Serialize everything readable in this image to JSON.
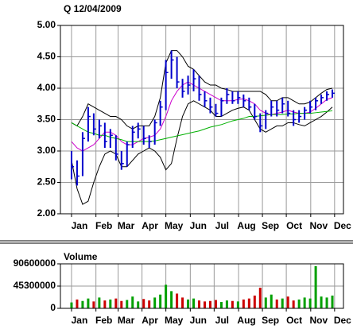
{
  "chart_data": [
    {
      "type": "hlc",
      "title": "Q 12/04/2009",
      "color": "#0000cc",
      "x": [
        0,
        1,
        2,
        3,
        4,
        5,
        6,
        7,
        8,
        9,
        10,
        11,
        12,
        13,
        14,
        15,
        16,
        17,
        18,
        19,
        20,
        21,
        22,
        23,
        24,
        25,
        26,
        27,
        28,
        29,
        30,
        31,
        32,
        33,
        34,
        35,
        36,
        37,
        38,
        39,
        40,
        41,
        42,
        43,
        44,
        45,
        46,
        47
      ],
      "high": [
        3.0,
        2.85,
        3.3,
        3.7,
        3.6,
        3.5,
        3.45,
        3.35,
        3.25,
        3.0,
        3.15,
        3.4,
        3.45,
        3.4,
        3.25,
        3.5,
        3.8,
        4.45,
        4.6,
        4.5,
        4.15,
        4.2,
        4.3,
        4.2,
        3.95,
        3.85,
        3.75,
        3.85,
        4.0,
        3.95,
        3.95,
        3.9,
        3.85,
        3.75,
        3.6,
        3.65,
        3.8,
        3.8,
        3.85,
        3.8,
        3.65,
        3.65,
        3.7,
        3.8,
        3.85,
        3.9,
        3.95,
        3.98
      ],
      "low": [
        2.55,
        2.45,
        2.6,
        3.15,
        3.25,
        3.2,
        3.05,
        3.05,
        2.85,
        2.7,
        2.75,
        3.05,
        3.2,
        3.1,
        3.05,
        3.1,
        3.4,
        3.65,
        4.15,
        4.0,
        3.85,
        3.9,
        3.95,
        3.8,
        3.7,
        3.6,
        3.55,
        3.55,
        3.75,
        3.75,
        3.75,
        3.7,
        3.65,
        3.5,
        3.3,
        3.35,
        3.55,
        3.55,
        3.6,
        3.55,
        3.4,
        3.45,
        3.5,
        3.6,
        3.65,
        3.75,
        3.8,
        3.85
      ],
      "close": [
        2.75,
        2.6,
        3.2,
        3.55,
        3.35,
        3.4,
        3.15,
        3.25,
        2.95,
        2.8,
        3.1,
        3.3,
        3.35,
        3.2,
        3.15,
        3.45,
        3.7,
        4.25,
        4.45,
        4.1,
        3.95,
        4.05,
        4.15,
        3.9,
        3.8,
        3.7,
        3.6,
        3.8,
        3.9,
        3.8,
        3.85,
        3.8,
        3.7,
        3.55,
        3.4,
        3.6,
        3.7,
        3.65,
        3.75,
        3.6,
        3.5,
        3.55,
        3.65,
        3.7,
        3.8,
        3.85,
        3.9,
        3.92
      ],
      "lines": [
        {
          "color": "#000000",
          "values": [
            3.45,
            3.4,
            3.55,
            3.75,
            3.7,
            3.65,
            3.6,
            3.55,
            3.55,
            3.5,
            3.4,
            3.35,
            3.4,
            3.4,
            3.4,
            3.55,
            3.85,
            4.4,
            4.6,
            4.6,
            4.5,
            4.35,
            4.3,
            4.2,
            4.1,
            4.05,
            4.05,
            4.0,
            3.98,
            3.95,
            3.95,
            3.95,
            3.95,
            3.95,
            3.95,
            3.9,
            3.8,
            3.8,
            3.85,
            3.85,
            3.8,
            3.75,
            3.75,
            3.78,
            3.85,
            3.92,
            3.98,
            4.0
          ]
        },
        {
          "color": "#000000",
          "values": [
            2.85,
            2.4,
            2.15,
            2.2,
            2.5,
            2.75,
            2.95,
            3.0,
            2.95,
            2.75,
            2.75,
            2.85,
            2.95,
            3.0,
            3.05,
            3.0,
            2.9,
            2.7,
            2.8,
            3.2,
            3.55,
            3.75,
            3.8,
            3.75,
            3.7,
            3.65,
            3.55,
            3.55,
            3.6,
            3.65,
            3.68,
            3.7,
            3.65,
            3.5,
            3.35,
            3.3,
            3.35,
            3.4,
            3.4,
            3.45,
            3.45,
            3.42,
            3.4,
            3.45,
            3.5,
            3.55,
            3.62,
            3.7
          ]
        },
        {
          "color": "#cc00cc",
          "values": [
            3.15,
            3.05,
            3.0,
            3.05,
            3.1,
            3.2,
            3.3,
            3.3,
            3.25,
            3.15,
            3.1,
            3.1,
            3.15,
            3.2,
            3.22,
            3.25,
            3.35,
            3.55,
            3.8,
            3.95,
            4.05,
            4.1,
            4.05,
            4.0,
            3.95,
            3.9,
            3.85,
            3.8,
            3.8,
            3.8,
            3.82,
            3.83,
            3.8,
            3.75,
            3.65,
            3.6,
            3.58,
            3.6,
            3.62,
            3.65,
            3.62,
            3.6,
            3.6,
            3.62,
            3.68,
            3.75,
            3.82,
            3.85
          ]
        },
        {
          "color": "#00b000",
          "values": [
            3.45,
            3.4,
            3.35,
            3.3,
            3.28,
            3.25,
            3.25,
            3.22,
            3.2,
            3.18,
            3.15,
            3.15,
            3.15,
            3.15,
            3.15,
            3.16,
            3.18,
            3.2,
            3.22,
            3.24,
            3.26,
            3.28,
            3.3,
            3.32,
            3.35,
            3.38,
            3.4,
            3.42,
            3.45,
            3.48,
            3.5,
            3.52,
            3.55,
            3.55,
            3.56,
            3.57,
            3.58,
            3.58,
            3.58,
            3.59,
            3.59,
            3.6,
            3.6,
            3.6,
            3.61,
            3.62,
            3.63,
            3.64
          ]
        }
      ],
      "xlim": [
        -2,
        49
      ],
      "xticks": [
        {
          "value": 0,
          "label": "Jan"
        },
        {
          "value": 4.4,
          "label": "Feb"
        },
        {
          "value": 8.4,
          "label": "Mar"
        },
        {
          "value": 12.7,
          "label": "Apr"
        },
        {
          "value": 17,
          "label": "May"
        },
        {
          "value": 21.4,
          "label": "Jun"
        },
        {
          "value": 25.7,
          "label": "Jul"
        },
        {
          "value": 30.1,
          "label": "Aug"
        },
        {
          "value": 34.4,
          "label": "Sep"
        },
        {
          "value": 38.7,
          "label": "Oct"
        },
        {
          "value": 43.1,
          "label": "Nov"
        },
        {
          "value": 47.4,
          "label": "Dec"
        }
      ],
      "ylim": [
        2,
        5
      ],
      "yticks": [
        {
          "value": 2,
          "label": "2.00"
        },
        {
          "value": 2.5,
          "label": "2.50"
        },
        {
          "value": 3,
          "label": "3.00"
        },
        {
          "value": 3.5,
          "label": "3.50"
        },
        {
          "value": 4,
          "label": "4.00"
        },
        {
          "value": 4.5,
          "label": "4.50"
        },
        {
          "value": 5,
          "label": "5.00"
        }
      ],
      "grid": true
    },
    {
      "type": "bar",
      "title": "Volume",
      "colors": [
        "#00a000",
        "#cc0000"
      ],
      "x": [
        0,
        1,
        2,
        3,
        4,
        5,
        6,
        7,
        8,
        9,
        10,
        11,
        12,
        13,
        14,
        15,
        16,
        17,
        18,
        19,
        20,
        21,
        22,
        23,
        24,
        25,
        26,
        27,
        28,
        29,
        30,
        31,
        32,
        33,
        34,
        35,
        36,
        37,
        38,
        39,
        40,
        41,
        42,
        43,
        44,
        45,
        46,
        47
      ],
      "values": [
        12000000,
        18000000,
        15000000,
        20000000,
        14000000,
        22000000,
        16000000,
        18000000,
        20000000,
        15000000,
        17000000,
        24000000,
        14000000,
        19000000,
        16000000,
        22000000,
        28000000,
        48000000,
        35000000,
        30000000,
        22000000,
        18000000,
        20000000,
        16000000,
        14000000,
        15000000,
        17000000,
        13000000,
        16000000,
        15000000,
        14000000,
        18000000,
        20000000,
        26000000,
        42000000,
        22000000,
        28000000,
        18000000,
        20000000,
        24000000,
        16000000,
        18000000,
        22000000,
        20000000,
        86000000,
        24000000,
        22000000,
        26000000
      ],
      "xlim": [
        -2,
        49
      ],
      "xticks": [
        {
          "value": 0,
          "label": "Jan"
        },
        {
          "value": 4.4,
          "label": "Feb"
        },
        {
          "value": 8.4,
          "label": "Mar"
        },
        {
          "value": 12.7,
          "label": "Apr"
        },
        {
          "value": 17,
          "label": "May"
        },
        {
          "value": 21.4,
          "label": "Jun"
        },
        {
          "value": 25.7,
          "label": "Jul"
        },
        {
          "value": 30.1,
          "label": "Aug"
        },
        {
          "value": 34.4,
          "label": "Sep"
        },
        {
          "value": 38.7,
          "label": "Oct"
        },
        {
          "value": 43.1,
          "label": "Nov"
        },
        {
          "value": 47.4,
          "label": "Dec"
        }
      ],
      "ylim": [
        0,
        90600000
      ],
      "yticks": [
        0,
        45300000,
        90600000
      ],
      "grid": true
    }
  ]
}
